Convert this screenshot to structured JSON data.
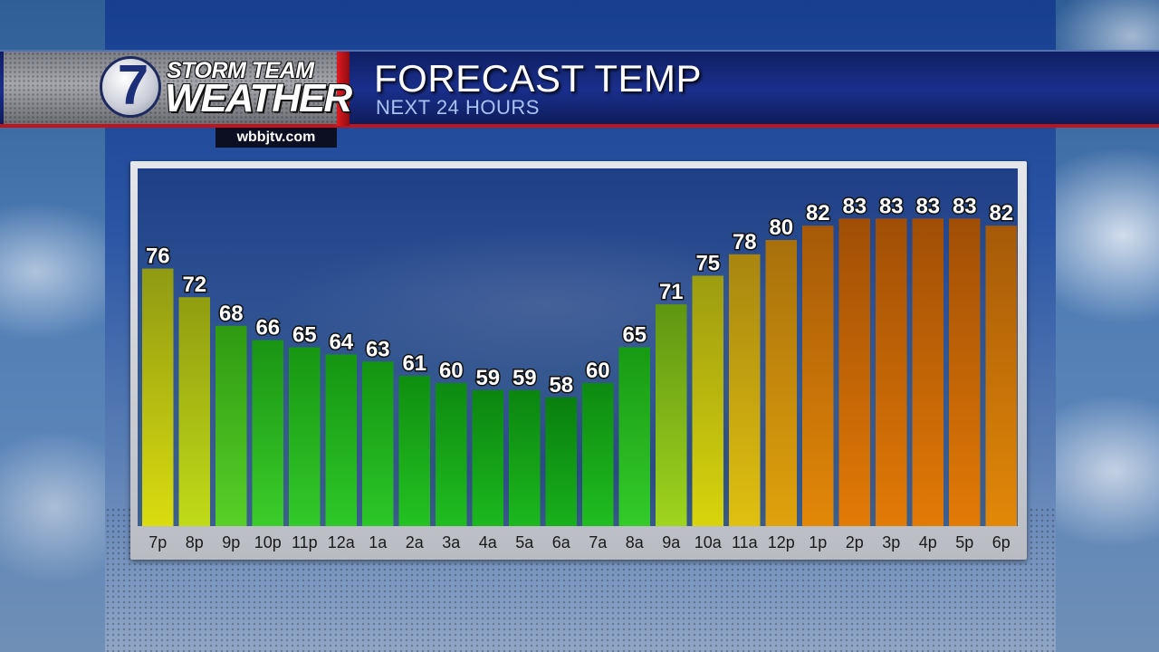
{
  "branding": {
    "logo_number": "7",
    "logo_line1": "STORM TEAM",
    "logo_line2": "WEATHER",
    "website": "wbbjtv.com"
  },
  "header": {
    "title": "FORECAST TEMP",
    "subtitle": "NEXT 24 HOURS"
  },
  "colors": {
    "header_blue": "#1a2f8c",
    "accent_red": "#c0141c",
    "tick_label": "#1a1a1a",
    "value_label": "#ffffff"
  },
  "chart_data": {
    "type": "bar",
    "categories": [
      "7p",
      "8p",
      "9p",
      "10p",
      "11p",
      "12a",
      "1a",
      "2a",
      "3a",
      "4a",
      "5a",
      "6a",
      "7a",
      "8a",
      "9a",
      "10a",
      "11a",
      "12p",
      "1p",
      "2p",
      "3p",
      "4p",
      "5p",
      "6p"
    ],
    "values": [
      76,
      72,
      68,
      66,
      65,
      64,
      63,
      61,
      60,
      59,
      59,
      58,
      60,
      65,
      71,
      75,
      78,
      80,
      82,
      83,
      83,
      83,
      83,
      82
    ],
    "bar_colors": [
      [
        "#8f9a12",
        "#dadc10"
      ],
      [
        "#909d10",
        "#c0db18"
      ],
      [
        "#2f9a12",
        "#58cf28"
      ],
      [
        "#1a9414",
        "#3bcd2a"
      ],
      [
        "#179612",
        "#33c92a"
      ],
      [
        "#159512",
        "#2ec828"
      ],
      [
        "#149412",
        "#2cc728"
      ],
      [
        "#0f8e10",
        "#24c222"
      ],
      [
        "#0d8a10",
        "#20bd20"
      ],
      [
        "#0b8510",
        "#1cb81e"
      ],
      [
        "#0b8510",
        "#1cb81e"
      ],
      [
        "#097f0e",
        "#18b01c"
      ],
      [
        "#0d8a10",
        "#20bd20"
      ],
      [
        "#189a14",
        "#34cb2a"
      ],
      [
        "#5f9612",
        "#9fd41e"
      ],
      [
        "#9c9c10",
        "#d8d40c"
      ],
      [
        "#a88610",
        "#e0c010"
      ],
      [
        "#a8700c",
        "#e0a20c"
      ],
      [
        "#a65a08",
        "#e28808"
      ],
      [
        "#a04e06",
        "#e27a06"
      ],
      [
        "#a04e06",
        "#e27a06"
      ],
      [
        "#a04e06",
        "#e27a06"
      ],
      [
        "#a04e06",
        "#e27a06"
      ],
      [
        "#a65a08",
        "#e28808"
      ]
    ],
    "title": "FORECAST TEMP",
    "xlabel": "",
    "ylabel": "",
    "ylim": [
      40,
      90
    ],
    "grid": false,
    "legend": "none"
  }
}
